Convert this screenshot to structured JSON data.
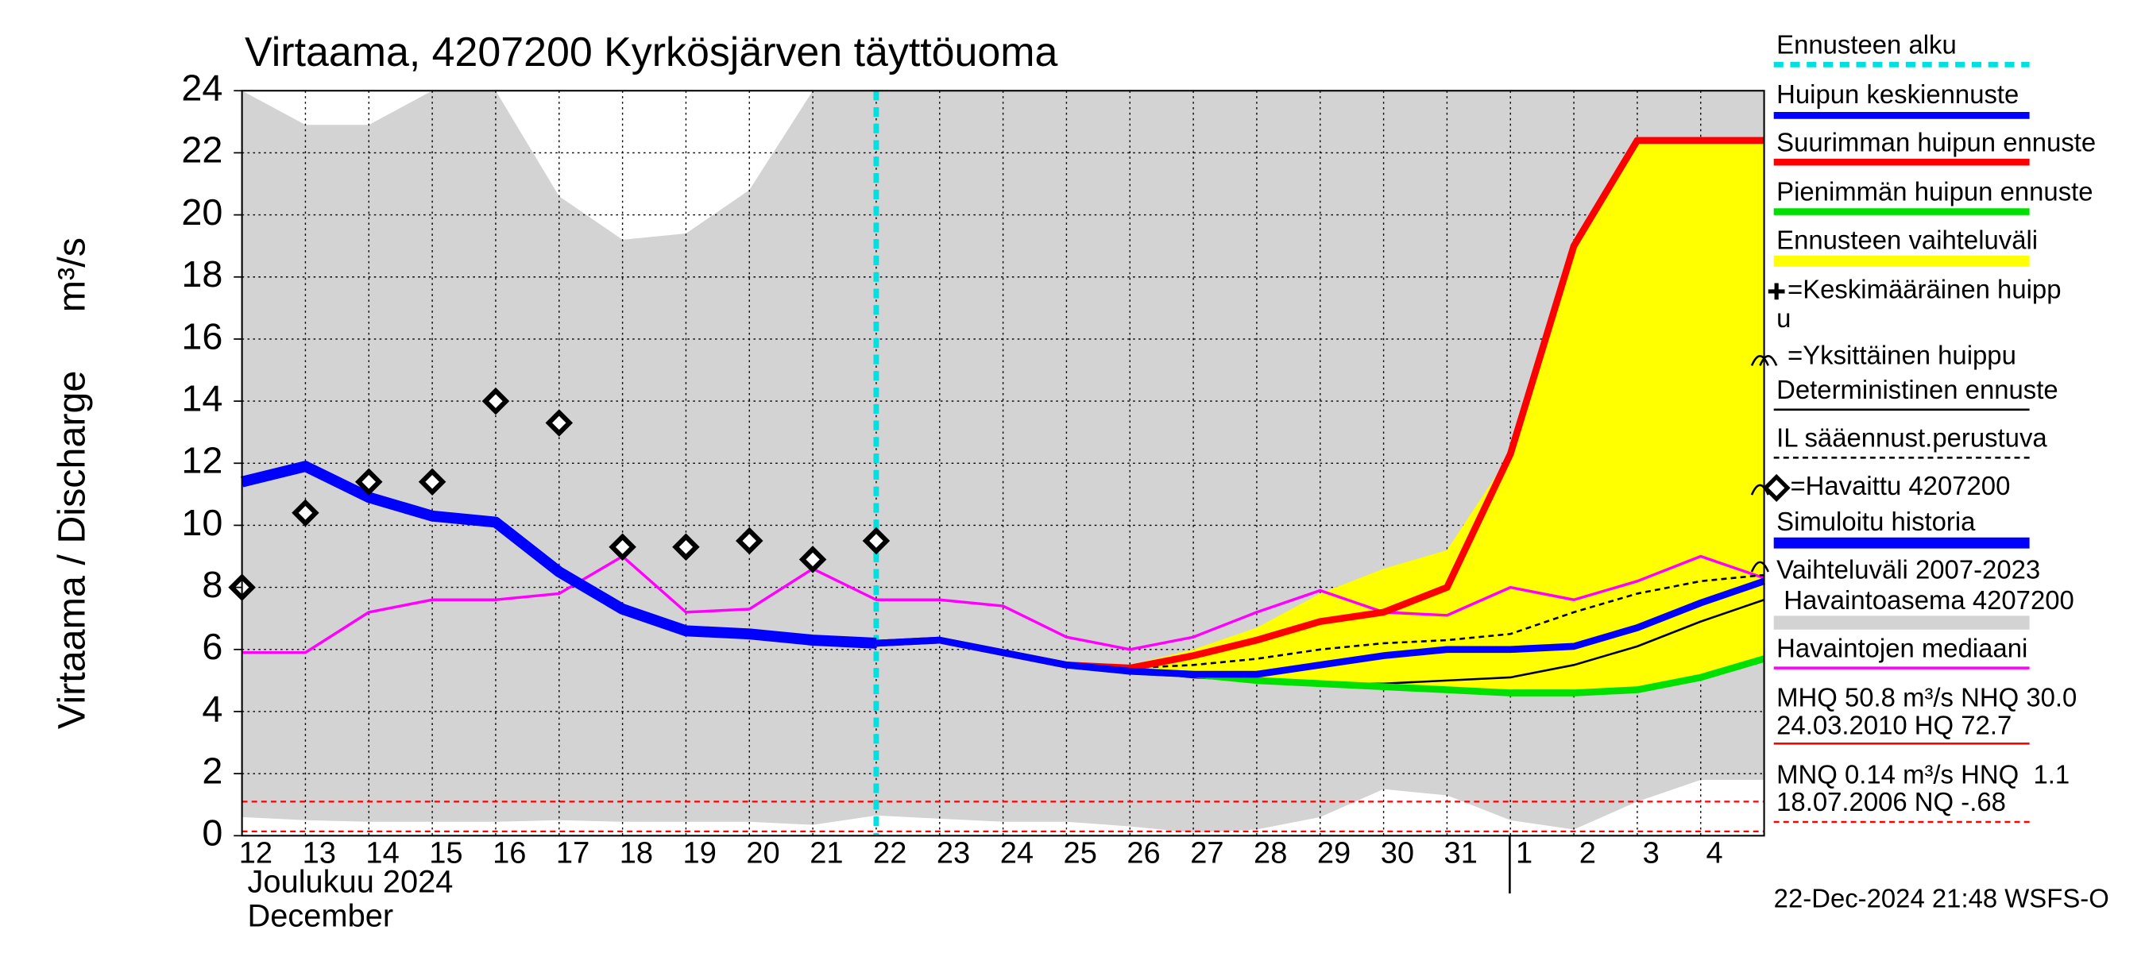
{
  "chart_data": {
    "type": "line",
    "title": "Virtaama, 4207200 Kyrkösjärven täyttöuoma",
    "y_label": "Virtaama / Discharge",
    "y_unit": "m³/s",
    "x_month_fi": "Joulukuu  2024",
    "x_month_en": "December",
    "footer": "22-Dec-2024 21:48 WSFS-O",
    "categories": [
      "12",
      "13",
      "14",
      "15",
      "16",
      "17",
      "18",
      "19",
      "20",
      "21",
      "22",
      "23",
      "24",
      "25",
      "26",
      "27",
      "28",
      "29",
      "30",
      "31",
      "1",
      "2",
      "3",
      "4",
      null
    ],
    "ylim": [
      0,
      24
    ],
    "yticks": [
      0,
      2,
      4,
      6,
      8,
      10,
      12,
      14,
      16,
      18,
      20,
      22,
      24
    ],
    "grid": true,
    "forecast_start": {
      "label": "Ennusteen alku",
      "at": "22",
      "color": "#00e0e0"
    },
    "ref_lines": [
      {
        "value": 1.1,
        "color": "#ff0000"
      },
      {
        "value": 0.14,
        "color": "#ff0000"
      }
    ],
    "series": [
      {
        "name": "Vaihteluväli 2007-2023",
        "style": "band",
        "color": "#d3d3d3",
        "values": [
          24,
          22.9,
          22.9,
          24,
          24,
          20.6,
          19.2,
          19.4,
          20.8,
          24,
          24,
          24,
          24,
          24,
          24,
          24,
          24,
          24,
          24,
          24,
          24,
          24,
          24,
          24,
          24
        ],
        "lower": [
          0.6,
          0.5,
          0.45,
          0.45,
          0.45,
          0.5,
          0.45,
          0.45,
          0.45,
          0.35,
          0.65,
          0.55,
          0.45,
          0.45,
          0.3,
          0.1,
          0.2,
          0.6,
          1.5,
          1.3,
          0.5,
          0.2,
          1.1,
          1.8,
          1.8
        ]
      },
      {
        "name": "Ennusteen vaihteluväli",
        "style": "band",
        "color": "#ffff00",
        "values": [
          null,
          null,
          null,
          null,
          null,
          null,
          null,
          null,
          null,
          null,
          null,
          null,
          null,
          5.5,
          5.5,
          6.0,
          6.7,
          7.8,
          8.6,
          9.2,
          12.3,
          19.0,
          22.4,
          22.4,
          22.4
        ],
        "lower": [
          null,
          null,
          null,
          null,
          null,
          null,
          null,
          null,
          null,
          null,
          null,
          null,
          null,
          5.5,
          5.3,
          5.2,
          5.0,
          4.9,
          4.8,
          4.7,
          4.6,
          4.6,
          4.7,
          5.1,
          5.7
        ]
      },
      {
        "name": "Havaintojen mediaani",
        "style": "thin",
        "color": "#ff00ff",
        "values": [
          5.9,
          5.9,
          7.2,
          7.6,
          7.6,
          7.8,
          9.0,
          7.2,
          7.3,
          8.6,
          7.6,
          7.6,
          7.4,
          6.4,
          6.0,
          6.4,
          7.2,
          7.9,
          7.2,
          7.1,
          8.0,
          7.6,
          8.2,
          9.0,
          8.3
        ]
      },
      {
        "name": "IL sääennust.perustuva",
        "style": "dashed",
        "color": "#000000",
        "values": [
          null,
          null,
          null,
          null,
          null,
          null,
          null,
          null,
          null,
          null,
          null,
          null,
          null,
          5.5,
          5.4,
          5.5,
          5.7,
          6.0,
          6.2,
          6.3,
          6.5,
          7.2,
          7.8,
          8.2,
          8.4
        ]
      },
      {
        "name": "Deterministinen ennuste",
        "style": "line",
        "color": "#000000",
        "values": [
          null,
          null,
          null,
          null,
          null,
          null,
          null,
          null,
          null,
          null,
          6.2,
          6.3,
          5.9,
          5.5,
          5.3,
          5.1,
          5.0,
          4.9,
          4.9,
          5.0,
          5.1,
          5.5,
          6.1,
          6.9,
          7.6
        ]
      },
      {
        "name": "Pienimmän huipun ennuste",
        "style": "medium",
        "color": "#00e000",
        "values": [
          null,
          null,
          null,
          null,
          null,
          null,
          null,
          null,
          null,
          null,
          6.2,
          6.3,
          5.9,
          5.5,
          5.3,
          5.2,
          5.0,
          4.9,
          4.8,
          4.7,
          4.6,
          4.6,
          4.7,
          5.1,
          5.7
        ]
      },
      {
        "name": "Suurimman huipun ennuste",
        "style": "medium",
        "color": "#ff0000",
        "values": [
          null,
          null,
          null,
          null,
          null,
          null,
          null,
          null,
          null,
          null,
          6.2,
          6.3,
          5.9,
          5.5,
          5.4,
          5.8,
          6.3,
          6.9,
          7.2,
          8.0,
          12.3,
          19.0,
          22.4,
          22.4,
          22.4
        ]
      },
      {
        "name": "Simuloitu historia",
        "style": "thick",
        "color": "#0000ff",
        "values": [
          11.4,
          11.9,
          10.9,
          10.3,
          10.1,
          8.5,
          7.3,
          6.6,
          6.5,
          6.3,
          6.2,
          null,
          null,
          null,
          null,
          null,
          null,
          null,
          null,
          null,
          null,
          null,
          null,
          null,
          null
        ]
      },
      {
        "name": "Huipun keskiennuste",
        "style": "medium",
        "color": "#0000ff",
        "values": [
          null,
          null,
          null,
          null,
          null,
          null,
          null,
          null,
          null,
          null,
          6.2,
          6.3,
          5.9,
          5.5,
          5.3,
          5.2,
          5.2,
          5.5,
          5.8,
          6.0,
          6.0,
          6.1,
          6.7,
          7.5,
          8.2
        ]
      },
      {
        "name": "=Havaittu 4207200",
        "style": "points",
        "color": "#000000",
        "values": [
          8.0,
          10.4,
          11.4,
          11.4,
          14.0,
          13.3,
          9.3,
          9.3,
          9.5,
          8.9,
          9.5,
          null,
          null,
          null,
          null,
          null,
          null,
          null,
          null,
          null,
          null,
          null,
          null,
          null,
          null
        ]
      }
    ],
    "mean_peak_label": [
      "=Keskimääräinen huipp",
      "u"
    ],
    "single_peak_label": "=Yksittäinen huippu",
    "station_label": " Havaintoasema 4207200",
    "stats": [
      "MHQ 50.8 m³/s NHQ 30.0",
      "24.03.2010 HQ 72.7",
      "MNQ 0.14 m³/s HNQ  1.1",
      "18.07.2006 NQ -.68"
    ]
  }
}
